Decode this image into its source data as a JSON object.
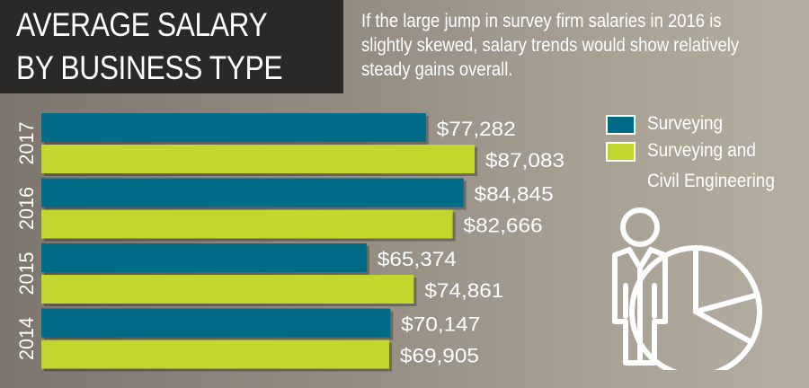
{
  "header": {
    "title_line1": "AVERAGE SALARY",
    "title_line2": "BY BUSINESS TYPE",
    "subtitle": "If the large jump in survey firm salaries in 2016 is slightly skewed, salary trends would show relatively steady gains overall."
  },
  "legend": {
    "items": [
      {
        "label": "Surveying",
        "color": "#006b87"
      },
      {
        "label_line1": "Surveying and",
        "label_line2": "Civil Engineering",
        "color": "#c2d62e"
      }
    ]
  },
  "icons": {
    "illustration": "person-with-pie-chart-icon"
  },
  "chart_data": {
    "type": "bar",
    "orientation": "horizontal",
    "title": "AVERAGE SALARY BY BUSINESS TYPE",
    "categories": [
      "2017",
      "2016",
      "2015",
      "2014"
    ],
    "series": [
      {
        "name": "Surveying",
        "color": "#006b87",
        "values": [
          77282,
          84845,
          65374,
          70147
        ],
        "labels": [
          "$77,282",
          "$84,845",
          "$65,374",
          "$70,147"
        ]
      },
      {
        "name": "Surveying and Civil Engineering",
        "color": "#c2d62e",
        "values": [
          87083,
          82666,
          74861,
          69905
        ],
        "labels": [
          "$87,083",
          "$82,666",
          "$74,861",
          "$69,905"
        ]
      }
    ],
    "xlim": [
      0,
      87083
    ],
    "grid": false,
    "legend_position": "right"
  }
}
